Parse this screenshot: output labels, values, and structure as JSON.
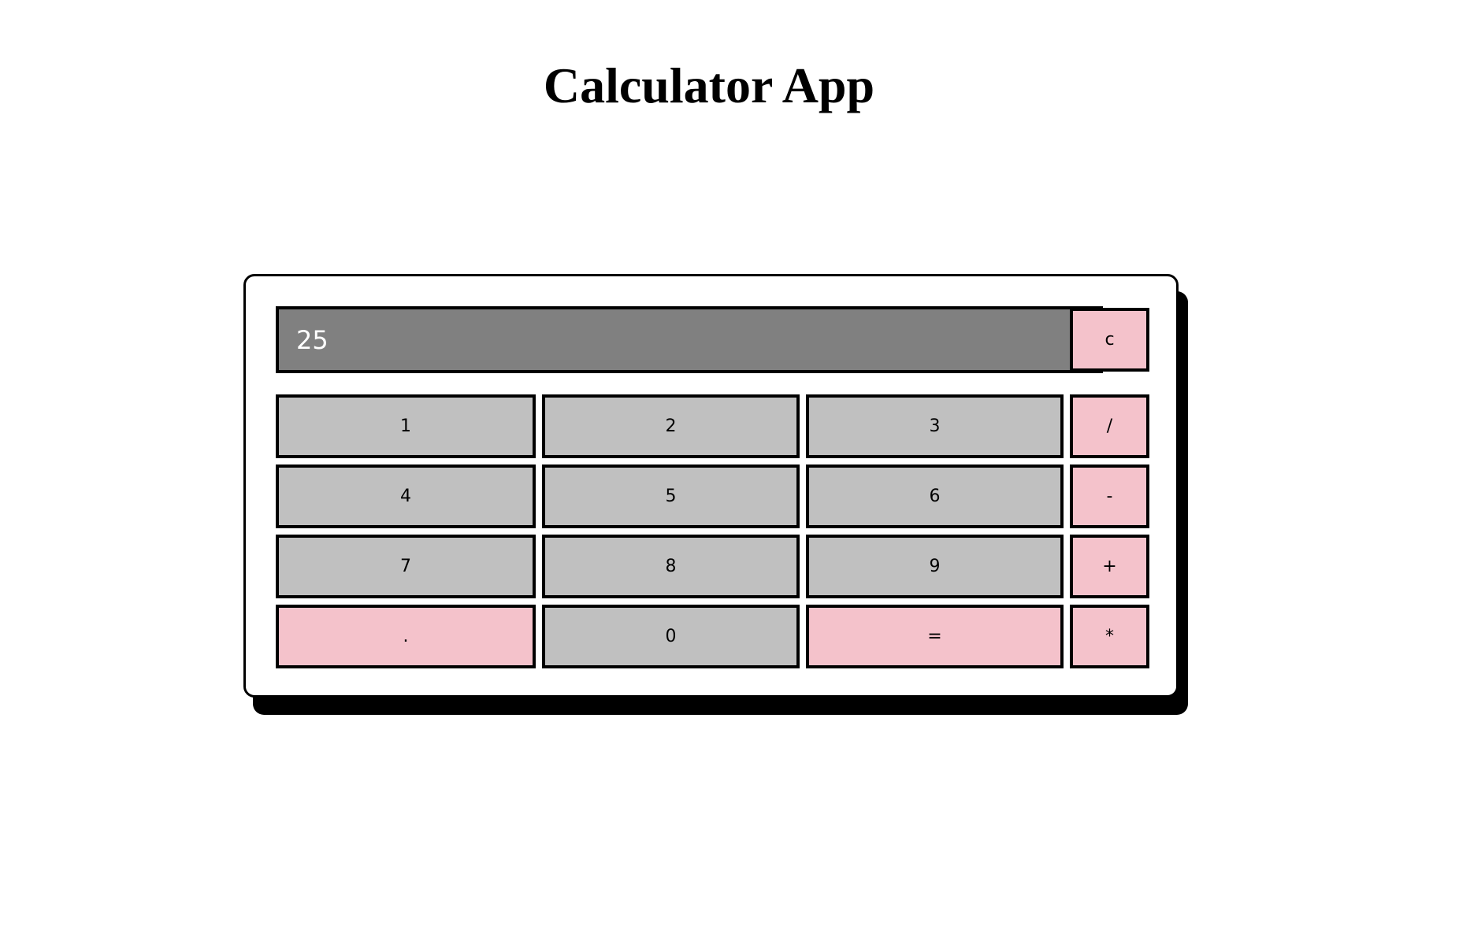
{
  "page": {
    "title": "Calculator App"
  },
  "calculator": {
    "display_value": "25",
    "clear_label": "c",
    "keys": {
      "one": "1",
      "two": "2",
      "three": "3",
      "divide": "/",
      "four": "4",
      "five": "5",
      "six": "6",
      "subtract": "-",
      "seven": "7",
      "eight": "8",
      "nine": "9",
      "add": "+",
      "decimal": ".",
      "zero": "0",
      "equals": "=",
      "multiply": "*"
    }
  },
  "colors": {
    "display_background": "#808080",
    "digit_key": "#c0c0c0",
    "operator_key": "#f4c2cb",
    "border": "#000000"
  }
}
